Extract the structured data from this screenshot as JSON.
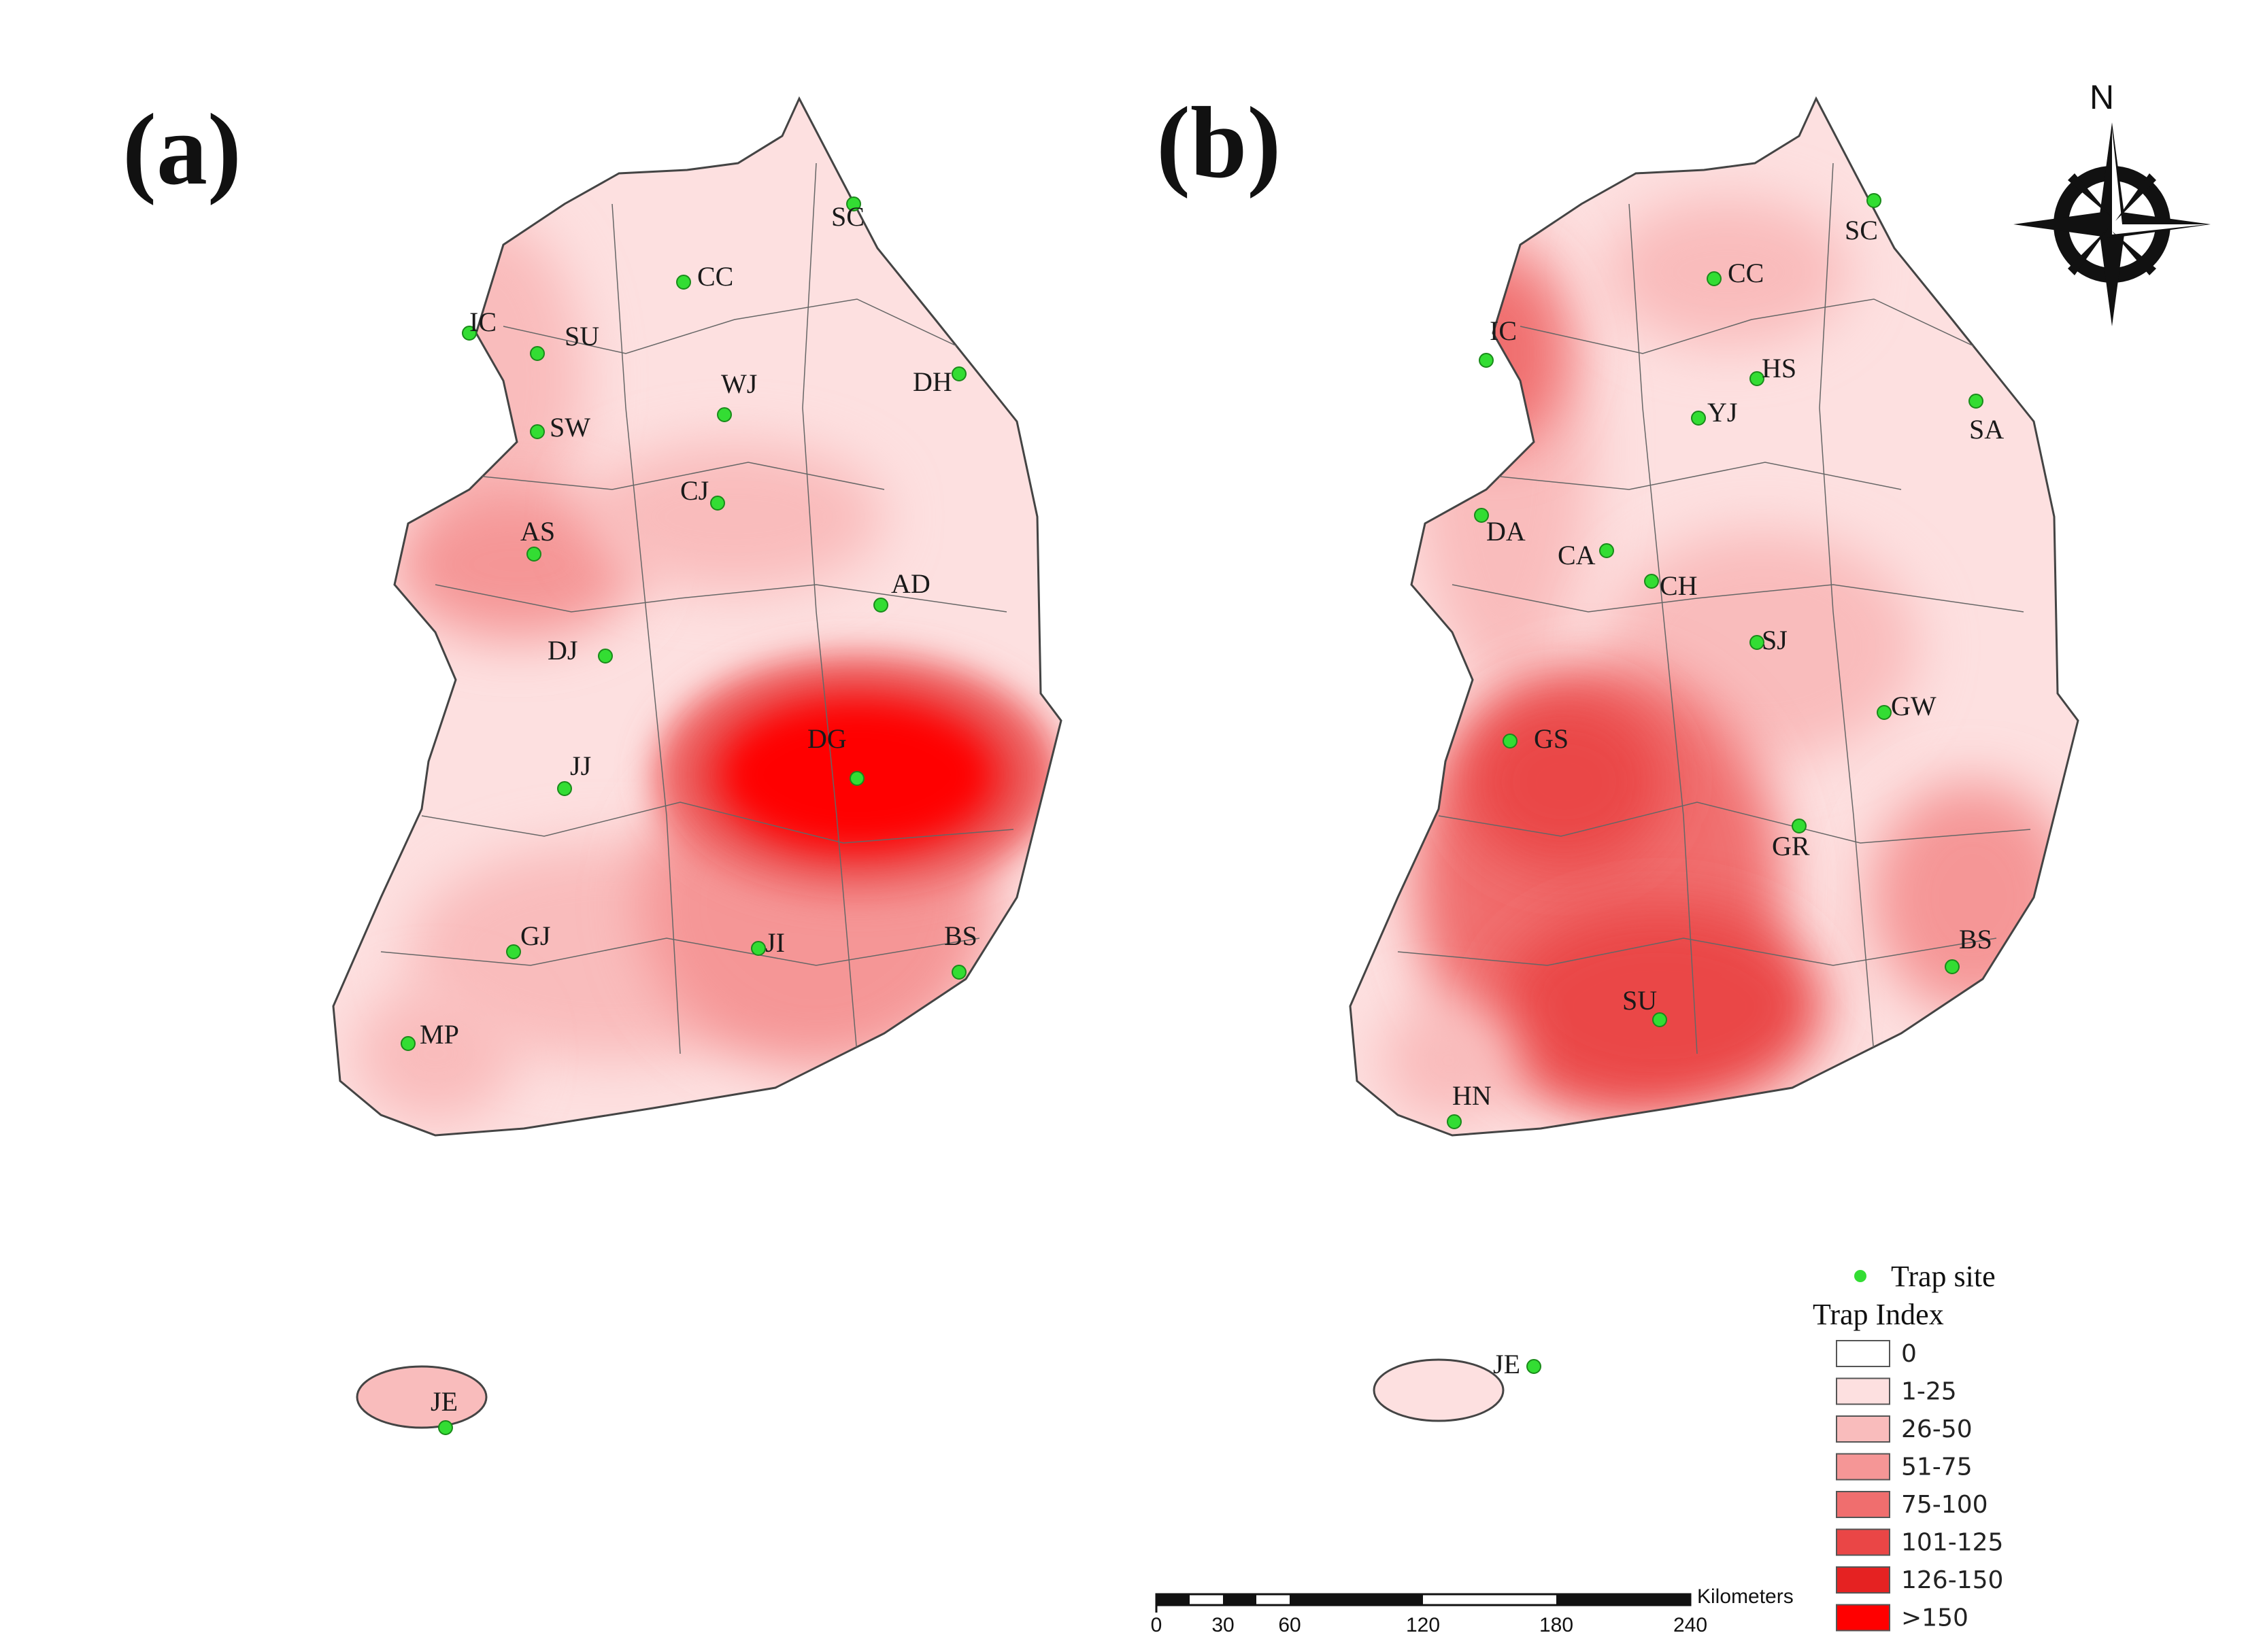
{
  "panels": [
    {
      "letter": "(a)",
      "sites": [
        {
          "code": "SC"
        },
        {
          "code": "CC"
        },
        {
          "code": "IC"
        },
        {
          "code": "SU"
        },
        {
          "code": "WJ"
        },
        {
          "code": "DH"
        },
        {
          "code": "SW"
        },
        {
          "code": "CJ"
        },
        {
          "code": "AS"
        },
        {
          "code": "AD"
        },
        {
          "code": "DJ"
        },
        {
          "code": "DG"
        },
        {
          "code": "JJ"
        },
        {
          "code": "GJ"
        },
        {
          "code": "JI"
        },
        {
          "code": "BS"
        },
        {
          "code": "MP"
        },
        {
          "code": "JE"
        }
      ]
    },
    {
      "letter": "(b)",
      "sites": [
        {
          "code": "SC"
        },
        {
          "code": "CC"
        },
        {
          "code": "IC"
        },
        {
          "code": "HS"
        },
        {
          "code": "YJ"
        },
        {
          "code": "SA"
        },
        {
          "code": "DA"
        },
        {
          "code": "CA"
        },
        {
          "code": "CH"
        },
        {
          "code": "SJ"
        },
        {
          "code": "GW"
        },
        {
          "code": "GS"
        },
        {
          "code": "GR"
        },
        {
          "code": "BS"
        },
        {
          "code": "SU"
        },
        {
          "code": "HN"
        },
        {
          "code": "JE"
        }
      ]
    }
  ],
  "north_arrow": {
    "label": "N"
  },
  "legend": {
    "trap_site_label": "Trap site",
    "title": "Trap Index",
    "classes": [
      {
        "label": "0",
        "color": "#ffffff"
      },
      {
        "label": "1-25",
        "color": "#fde0e0"
      },
      {
        "label": "26-50",
        "color": "#f9bcbc"
      },
      {
        "label": "51-75",
        "color": "#f59696"
      },
      {
        "label": "75-100",
        "color": "#f06e6e"
      },
      {
        "label": "101-125",
        "color": "#ea4646"
      },
      {
        "label": "126-150",
        "color": "#e52222"
      },
      {
        "label": ">150",
        "color": "#ff0000"
      }
    ]
  },
  "scale_bar": {
    "unit": "Kilometers",
    "ticks": [
      "0",
      "30",
      "60",
      "120",
      "180",
      "240"
    ]
  },
  "colors": {
    "trap_site": "#33dd33",
    "boundary": "#444444"
  }
}
